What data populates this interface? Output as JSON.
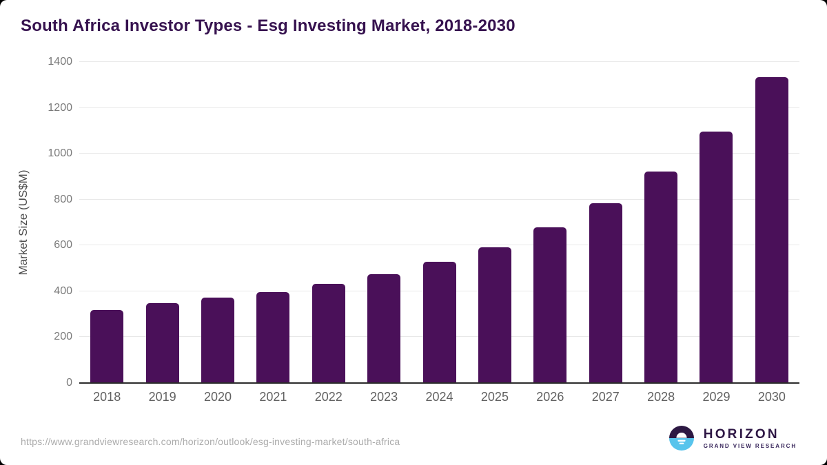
{
  "header": {
    "title": "South Africa Investor Types - Esg Investing Market, 2018-2030"
  },
  "chart_data": {
    "type": "bar",
    "title": "South Africa Investor Types - Esg Investing Market, 2018-2030",
    "categories": [
      "2018",
      "2019",
      "2020",
      "2021",
      "2022",
      "2023",
      "2024",
      "2025",
      "2026",
      "2027",
      "2028",
      "2029",
      "2030"
    ],
    "values": [
      320,
      350,
      372,
      398,
      432,
      475,
      528,
      593,
      680,
      785,
      922,
      1097,
      1334
    ],
    "xlabel": "",
    "ylabel": "Market Size (US$M)",
    "ylim": [
      0,
      1400
    ],
    "yticks": [
      0,
      200,
      400,
      600,
      800,
      1000,
      1200,
      1400
    ],
    "grid": true,
    "legend": "none",
    "colors": {
      "bar": "#4a1059",
      "gridline": "#e8e8e8",
      "axis_line": "#2b2b2b",
      "tick_labels": "#7a7a7a",
      "title": "#36124f"
    }
  },
  "footer": {
    "source_url": "https://www.grandviewresearch.com/horizon/outlook/esg-investing-market/south-africa",
    "logo": {
      "brand": "HORIZON",
      "subbrand": "GRAND VIEW RESEARCH",
      "mark_icon": "sun-horizon-icon",
      "mark_top_color": "#2d1843",
      "mark_bottom_color": "#58c4ec"
    }
  }
}
